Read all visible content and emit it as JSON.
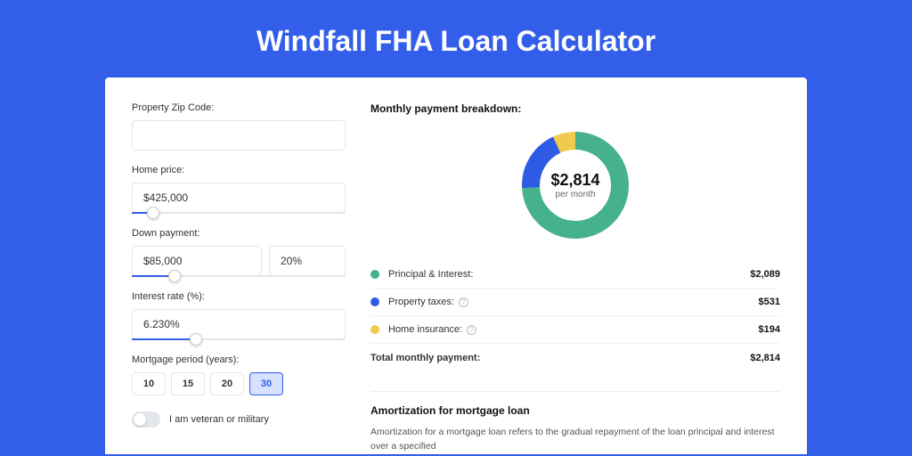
{
  "page": {
    "title": "Windfall FHA Loan Calculator"
  },
  "colors": {
    "primary": "#335eea",
    "pi": "#45b28b",
    "tax": "#2d5be6",
    "ins": "#f0c94e",
    "card_bg": "#ffffff",
    "border": "#e3e6ea"
  },
  "form": {
    "zip": {
      "label": "Property Zip Code:",
      "value": ""
    },
    "home_price": {
      "label": "Home price:",
      "value": "$425,000",
      "slider_pct": 10
    },
    "down_payment": {
      "label": "Down payment:",
      "value": "$85,000",
      "pct_value": "20%",
      "slider_pct": 20
    },
    "interest_rate": {
      "label": "Interest rate (%):",
      "value": "6.230%",
      "slider_pct": 30
    },
    "mortgage_period": {
      "label": "Mortgage period (years):",
      "options": [
        "10",
        "15",
        "20",
        "30"
      ],
      "selected": "30"
    },
    "veteran": {
      "label": "I am veteran or military",
      "checked": false
    }
  },
  "breakdown": {
    "title": "Monthly payment breakdown:",
    "center_amount": "$2,814",
    "center_sub": "per month",
    "items": [
      {
        "label": "Principal & Interest:",
        "value": "$2,089",
        "color": "#45b28b",
        "info": false,
        "pct": 74
      },
      {
        "label": "Property taxes:",
        "value": "$531",
        "color": "#2d5be6",
        "info": true,
        "pct": 19
      },
      {
        "label": "Home insurance:",
        "value": "$194",
        "color": "#f0c94e",
        "info": true,
        "pct": 7
      }
    ],
    "total_label": "Total monthly payment:",
    "total_value": "$2,814"
  },
  "donut": {
    "radius": 50,
    "stroke_width": 20,
    "circumference": 314.16
  },
  "amort": {
    "title": "Amortization for mortgage loan",
    "text": "Amortization for a mortgage loan refers to the gradual repayment of the loan principal and interest over a specified"
  }
}
